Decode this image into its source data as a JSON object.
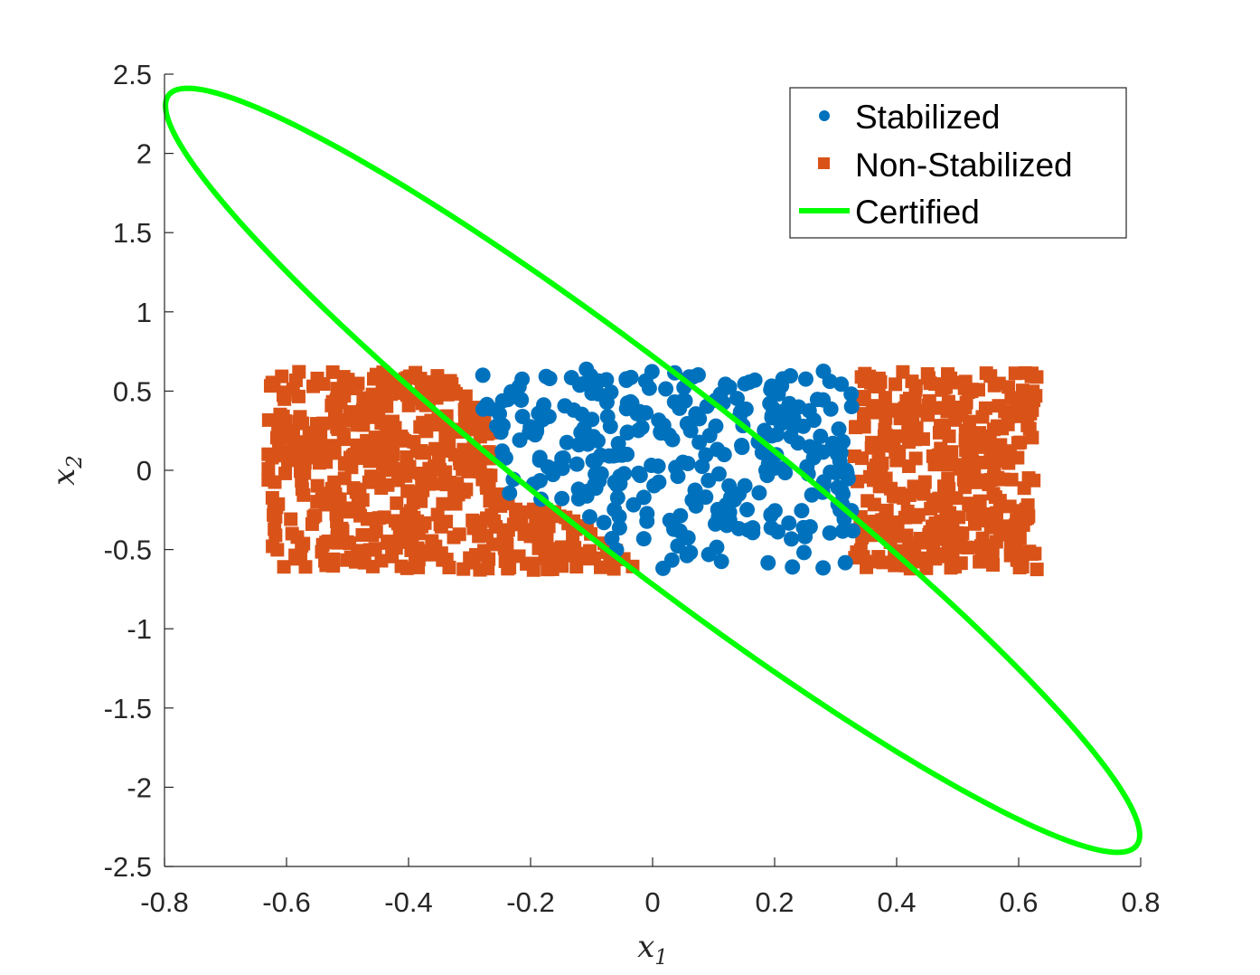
{
  "chart_data": {
    "type": "scatter",
    "xlabel": "x",
    "xlabel_sub": "1",
    "ylabel": "x",
    "ylabel_sub": "2",
    "xlim": [
      -0.8,
      0.8
    ],
    "ylim": [
      -2.5,
      2.5
    ],
    "x_ticks": [
      "-0.8",
      "-0.6",
      "-0.4",
      "-0.2",
      "0",
      "0.2",
      "0.4",
      "0.6",
      "0.8"
    ],
    "y_ticks": [
      "2.5",
      "2",
      "1.5",
      "1",
      "0.5",
      "0",
      "-0.5",
      "-1",
      "-1.5",
      "-2",
      "-2.5"
    ],
    "grid": false,
    "legend_position": "top-right",
    "colors": {
      "stabilized": "#0072BD",
      "non_stabilized": "#D95319",
      "certified": "#00FF00",
      "axis": "#262626"
    },
    "series": [
      {
        "name": "Stabilized",
        "marker": "circle",
        "region": {
          "x": [
            -0.36,
            0.4
          ],
          "y": [
            -0.62,
            0.64
          ]
        },
        "count": 320
      },
      {
        "name": "Non-Stabilized",
        "marker": "square",
        "region": {
          "x": [
            -0.63,
            0.63
          ],
          "y": [
            -0.63,
            0.63
          ]
        },
        "count": 900
      },
      {
        "name": "Certified",
        "marker": "line",
        "ellipse": {
          "center": [
            0,
            0
          ],
          "endpoints": [
            [
              -0.755,
              2.41
            ],
            [
              0.755,
              -2.41
            ]
          ],
          "width_at_x0": [
            -0.13,
            0.4
          ]
        }
      }
    ]
  }
}
